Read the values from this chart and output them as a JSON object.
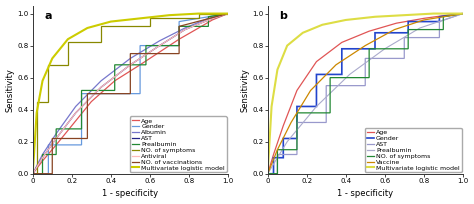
{
  "panel_a": {
    "title": "a",
    "curves": [
      {
        "label": "Age",
        "color": "#e05555",
        "lw": 0.9,
        "step": false,
        "x": [
          0,
          0.05,
          0.12,
          0.2,
          0.3,
          0.42,
          0.55,
          0.65,
          0.75,
          0.85,
          0.92,
          1.0
        ],
        "y": [
          0,
          0.08,
          0.18,
          0.3,
          0.45,
          0.58,
          0.68,
          0.76,
          0.84,
          0.91,
          0.96,
          1.0
        ]
      },
      {
        "label": "Gender",
        "color": "#6699dd",
        "lw": 0.9,
        "step": true,
        "x": [
          0,
          0.08,
          0.08,
          0.25,
          0.25,
          0.55,
          0.55,
          0.75,
          0.75,
          1.0
        ],
        "y": [
          0,
          0.0,
          0.18,
          0.18,
          0.5,
          0.5,
          0.8,
          0.8,
          0.95,
          1.0
        ]
      },
      {
        "label": "Albumin",
        "color": "#7777cc",
        "lw": 0.9,
        "step": false,
        "x": [
          0,
          0.05,
          0.12,
          0.22,
          0.35,
          0.5,
          0.65,
          0.78,
          0.9,
          1.0
        ],
        "y": [
          0,
          0.12,
          0.25,
          0.42,
          0.58,
          0.72,
          0.83,
          0.91,
          0.97,
          1.0
        ]
      },
      {
        "label": "AST",
        "color": "#222288",
        "lw": 0.9,
        "step": false,
        "x": [
          0,
          0.05,
          0.12,
          0.22,
          0.35,
          0.5,
          0.65,
          0.78,
          0.9,
          1.0
        ],
        "y": [
          0,
          0.1,
          0.22,
          0.38,
          0.54,
          0.68,
          0.8,
          0.9,
          0.96,
          1.0
        ]
      },
      {
        "label": "Prealbumin",
        "color": "#228833",
        "lw": 0.9,
        "step": true,
        "x": [
          0,
          0.05,
          0.05,
          0.12,
          0.12,
          0.25,
          0.25,
          0.42,
          0.42,
          0.58,
          0.58,
          0.75,
          0.75,
          0.9,
          0.9,
          1.0
        ],
        "y": [
          0,
          0.0,
          0.12,
          0.12,
          0.28,
          0.28,
          0.52,
          0.52,
          0.68,
          0.68,
          0.8,
          0.8,
          0.92,
          0.92,
          0.98,
          1.0
        ]
      },
      {
        "label": "NO. of symptoms",
        "color": "#888800",
        "lw": 0.9,
        "step": true,
        "x": [
          0,
          0.02,
          0.02,
          0.08,
          0.08,
          0.18,
          0.18,
          0.35,
          0.35,
          0.6,
          0.6,
          0.85,
          0.85,
          1.0
        ],
        "y": [
          0,
          0.0,
          0.45,
          0.45,
          0.68,
          0.68,
          0.82,
          0.82,
          0.92,
          0.92,
          0.97,
          0.97,
          1.0,
          1.0
        ]
      },
      {
        "label": "Antiviral",
        "color": "#ffbbbb",
        "lw": 0.9,
        "step": false,
        "x": [
          0,
          0.05,
          0.12,
          0.22,
          0.35,
          0.5,
          0.65,
          0.78,
          0.9,
          1.0
        ],
        "y": [
          0,
          0.1,
          0.22,
          0.38,
          0.54,
          0.68,
          0.8,
          0.9,
          0.96,
          1.0
        ]
      },
      {
        "label": "NO. of vaccinations",
        "color": "#884422",
        "lw": 0.9,
        "step": true,
        "x": [
          0,
          0.1,
          0.1,
          0.28,
          0.28,
          0.5,
          0.5,
          0.75,
          0.75,
          1.0
        ],
        "y": [
          0,
          0.0,
          0.22,
          0.22,
          0.5,
          0.5,
          0.75,
          0.75,
          0.92,
          1.0
        ]
      },
      {
        "label": "Multivariate logistic model",
        "color": "#cccc00",
        "lw": 1.5,
        "step": false,
        "x": [
          0,
          0.02,
          0.05,
          0.1,
          0.18,
          0.28,
          0.4,
          0.55,
          0.7,
          0.85,
          1.0
        ],
        "y": [
          0,
          0.38,
          0.58,
          0.72,
          0.84,
          0.91,
          0.95,
          0.97,
          0.99,
          1.0,
          1.0
        ]
      }
    ],
    "xlabel": "1 - specificity",
    "ylabel": "Sensitivity",
    "xlim": [
      0,
      1.0
    ],
    "ylim": [
      0,
      1.05
    ],
    "xticks": [
      0,
      0.2,
      0.4,
      0.6,
      0.8,
      1.0
    ],
    "yticks": [
      0.0,
      0.2,
      0.4,
      0.6,
      0.8,
      1.0
    ],
    "xticklabels": [
      "0",
      "0.2",
      "0.4",
      "0.6",
      "0.8",
      "1.0"
    ],
    "yticklabels": [
      "0.0",
      "0.2",
      "0.4",
      "0.6",
      "0.8",
      "1.0"
    ]
  },
  "panel_b": {
    "title": "b",
    "curves": [
      {
        "label": "Age",
        "color": "#e05555",
        "lw": 0.9,
        "step": false,
        "x": [
          0,
          0.03,
          0.08,
          0.15,
          0.25,
          0.38,
          0.52,
          0.66,
          0.8,
          0.92,
          1.0
        ],
        "y": [
          0,
          0.12,
          0.3,
          0.52,
          0.7,
          0.82,
          0.89,
          0.94,
          0.97,
          0.99,
          1.0
        ]
      },
      {
        "label": "Gender",
        "color": "#2244cc",
        "lw": 1.2,
        "step": true,
        "x": [
          0,
          0.03,
          0.03,
          0.08,
          0.08,
          0.15,
          0.15,
          0.25,
          0.25,
          0.38,
          0.38,
          0.55,
          0.55,
          0.72,
          0.72,
          0.88,
          0.88,
          1.0
        ],
        "y": [
          0,
          0.0,
          0.1,
          0.1,
          0.22,
          0.22,
          0.42,
          0.42,
          0.62,
          0.62,
          0.78,
          0.78,
          0.88,
          0.88,
          0.95,
          0.95,
          0.98,
          1.0
        ]
      },
      {
        "label": "AST",
        "color": "#9999cc",
        "lw": 0.9,
        "step": true,
        "x": [
          0,
          0.05,
          0.05,
          0.15,
          0.15,
          0.3,
          0.3,
          0.5,
          0.5,
          0.7,
          0.7,
          0.88,
          0.88,
          1.0
        ],
        "y": [
          0,
          0.0,
          0.12,
          0.12,
          0.32,
          0.32,
          0.55,
          0.55,
          0.72,
          0.72,
          0.85,
          0.85,
          0.95,
          1.0
        ]
      },
      {
        "label": "Prealbumin",
        "color": "#aaaacc",
        "lw": 0.8,
        "step": false,
        "x": [
          0,
          0.1,
          0.25,
          0.42,
          0.6,
          0.78,
          1.0
        ],
        "y": [
          0,
          0.2,
          0.42,
          0.62,
          0.78,
          0.91,
          1.0
        ]
      },
      {
        "label": "NO. of symptoms",
        "color": "#228833",
        "lw": 0.9,
        "step": true,
        "x": [
          0,
          0.05,
          0.05,
          0.15,
          0.15,
          0.32,
          0.32,
          0.52,
          0.52,
          0.72,
          0.72,
          0.9,
          0.9,
          1.0
        ],
        "y": [
          0,
          0.0,
          0.15,
          0.15,
          0.38,
          0.38,
          0.6,
          0.6,
          0.78,
          0.78,
          0.9,
          0.9,
          0.98,
          1.0
        ]
      },
      {
        "label": "Vaccine",
        "color": "#cc8800",
        "lw": 0.9,
        "step": false,
        "x": [
          0,
          0.05,
          0.12,
          0.22,
          0.35,
          0.5,
          0.65,
          0.8,
          1.0
        ],
        "y": [
          0,
          0.15,
          0.32,
          0.52,
          0.68,
          0.8,
          0.9,
          0.96,
          1.0
        ]
      },
      {
        "label": "Multivariate logistic model",
        "color": "#dddd44",
        "lw": 1.5,
        "step": false,
        "x": [
          0,
          0.02,
          0.05,
          0.1,
          0.18,
          0.28,
          0.4,
          0.55,
          0.7,
          0.85,
          1.0
        ],
        "y": [
          0,
          0.42,
          0.65,
          0.8,
          0.88,
          0.93,
          0.96,
          0.98,
          0.99,
          1.0,
          1.0
        ]
      }
    ],
    "xlabel": "1 - specificity",
    "ylabel": "Sensitivity",
    "xlim": [
      0,
      1.0
    ],
    "ylim": [
      0,
      1.05
    ],
    "xticks": [
      0,
      0.2,
      0.4,
      0.6,
      0.8,
      1.0
    ],
    "yticks": [
      0.0,
      0.2,
      0.4,
      0.6,
      0.8,
      1.0
    ],
    "xticklabels": [
      "0",
      "0.2",
      "0.4",
      "0.6",
      "0.8",
      "1.0"
    ],
    "yticklabels": [
      "0.0",
      "0.2",
      "0.4",
      "0.6",
      "0.8",
      "1.0"
    ]
  },
  "bg_color": "#ffffff",
  "plot_bg": "#ffffff",
  "legend_fontsize": 4.5,
  "axis_fontsize": 6,
  "tick_fontsize": 5,
  "title_fontsize": 8
}
